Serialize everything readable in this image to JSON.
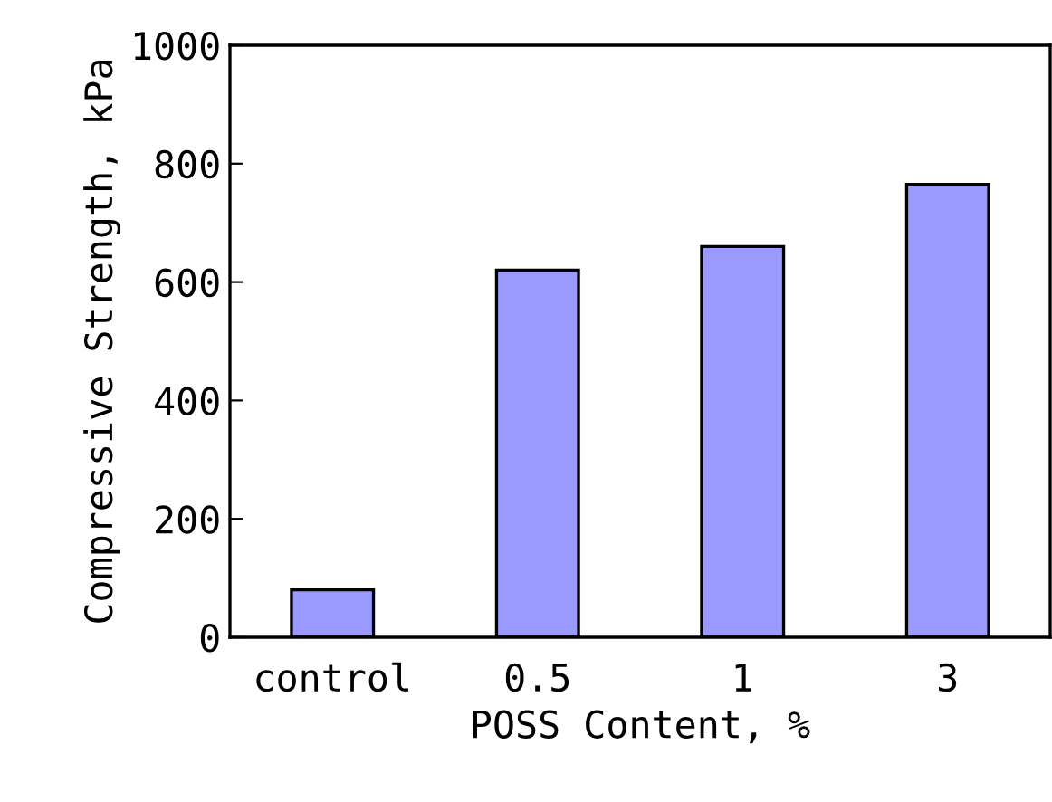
{
  "chart_data": {
    "type": "bar",
    "xlabel": "POSS Content, %",
    "ylabel": "Compressive Strength, kPa",
    "categories": [
      "control",
      "0.5",
      "1",
      "3"
    ],
    "values": [
      80,
      620,
      660,
      765
    ],
    "color": "#9999ff",
    "ylim": [
      0,
      1000
    ],
    "yticks": [
      0,
      200,
      400,
      600,
      800,
      1000
    ],
    "grid": false,
    "legend": false
  }
}
